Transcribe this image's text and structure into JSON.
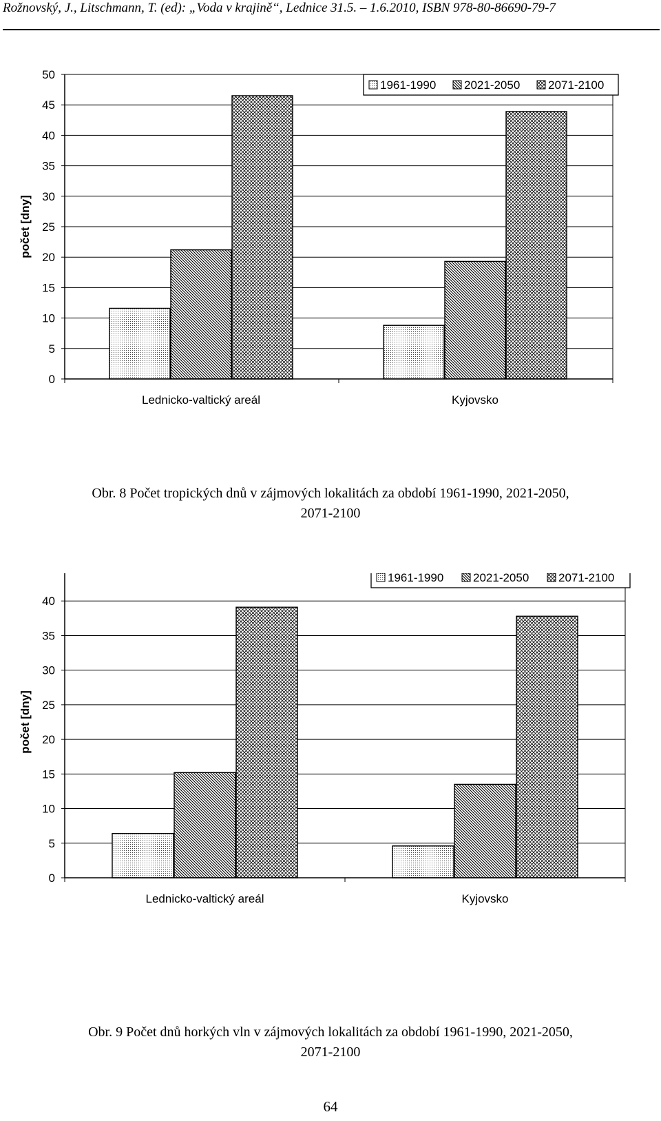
{
  "header": {
    "running_head": "Rožnovský, J., Litschmann, T. (ed): „Voda v krajině“, Lednice 31.5. – 1.6.2010, ISBN 978-80-86690-79-7"
  },
  "chart_data": [
    {
      "type": "bar",
      "ylabel": "počet [dny]",
      "ylim": [
        0,
        50
      ],
      "yticks": [
        0,
        5,
        10,
        15,
        20,
        25,
        30,
        35,
        40,
        45,
        50
      ],
      "grid": true,
      "legend_position": "top-right",
      "categories": [
        "Lednicko-valtický areál",
        "Kyjovsko"
      ],
      "series": [
        {
          "name": "1961-1990",
          "values": [
            11.6,
            8.8
          ],
          "pattern": "dots"
        },
        {
          "name": "2021-2050",
          "values": [
            21.2,
            19.3
          ],
          "pattern": "diagonal"
        },
        {
          "name": "2071-2100",
          "values": [
            46.5,
            43.9
          ],
          "pattern": "crosshatch"
        }
      ]
    },
    {
      "type": "bar",
      "ylabel": "počet [dny]",
      "ylim": [
        0,
        45
      ],
      "yticks": [
        0,
        5,
        10,
        15,
        20,
        25,
        30,
        35,
        40,
        45
      ],
      "grid": true,
      "legend_position": "top-right",
      "categories": [
        "Lednicko-valtický areál",
        "Kyjovsko"
      ],
      "series": [
        {
          "name": "1961-1990",
          "values": [
            6.4,
            4.6
          ],
          "pattern": "dots"
        },
        {
          "name": "2021-2050",
          "values": [
            15.2,
            13.5
          ],
          "pattern": "diagonal"
        },
        {
          "name": "2071-2100",
          "values": [
            39.1,
            37.8
          ],
          "pattern": "crosshatch"
        }
      ]
    }
  ],
  "captions": [
    {
      "line1": "Obr. 8 Počet tropických dnů v zájmových lokalitách za období 1961-1990, 2021-2050,",
      "line2": "2071-2100"
    },
    {
      "line1": "Obr. 9 Počet dnů horkých vln v zájmových lokalitách za období 1961-1990, 2021-2050,",
      "line2": "2071-2100"
    }
  ],
  "page_number": "64"
}
